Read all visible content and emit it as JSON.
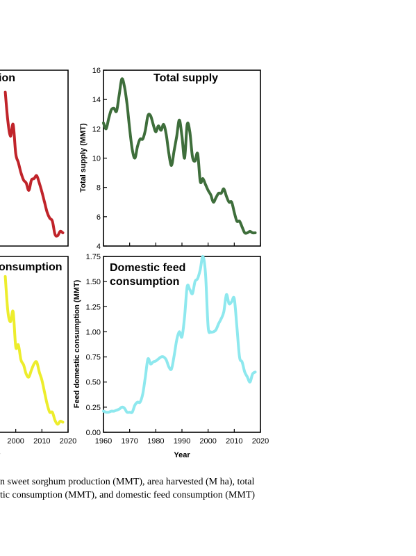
{
  "chart_data": [
    {
      "type": "line",
      "title": "ion",
      "xlabel": "",
      "ylabel": "",
      "color": "#c0242a",
      "x": [
        1996,
        1997,
        1998,
        1999,
        2000,
        2001,
        2002,
        2003,
        2004,
        2005,
        2006,
        2007,
        2008,
        2009,
        2010,
        2011,
        2012,
        2013,
        2014,
        2015,
        2016,
        2017,
        2018
      ],
      "values": [
        14.5,
        12.5,
        11.5,
        12.3,
        10.3,
        9.7,
        9.0,
        8.5,
        8.3,
        7.8,
        8.5,
        8.6,
        8.8,
        8.3,
        7.7,
        7.0,
        6.3,
        5.9,
        5.7,
        4.8,
        4.7,
        5.0,
        4.9
      ]
    },
    {
      "type": "line",
      "title": "Total supply",
      "xlabel": "",
      "ylabel": "Total supply (MMT)",
      "ylim": [
        4,
        16
      ],
      "yticks": [
        "4",
        "6",
        "8",
        "10",
        "12",
        "14",
        "16"
      ],
      "color": "#3e6e3b",
      "x": [
        1960,
        1961,
        1962,
        1963,
        1964,
        1965,
        1966,
        1967,
        1968,
        1969,
        1970,
        1971,
        1972,
        1973,
        1974,
        1975,
        1976,
        1977,
        1978,
        1979,
        1980,
        1981,
        1982,
        1983,
        1984,
        1985,
        1986,
        1987,
        1988,
        1989,
        1990,
        1991,
        1992,
        1993,
        1994,
        1995,
        1996,
        1997,
        1998,
        1999,
        2000,
        2001,
        2002,
        2003,
        2004,
        2005,
        2006,
        2007,
        2008,
        2009,
        2010,
        2011,
        2012,
        2013,
        2014,
        2015,
        2016,
        2017,
        2018
      ],
      "values": [
        12.4,
        12.0,
        12.7,
        13.3,
        13.4,
        13.2,
        14.3,
        15.4,
        14.9,
        13.7,
        12.0,
        10.6,
        10.0,
        10.8,
        11.3,
        11.3,
        11.9,
        12.9,
        12.9,
        12.3,
        11.8,
        12.2,
        11.9,
        12.3,
        11.6,
        10.3,
        9.5,
        10.5,
        11.5,
        12.6,
        11.5,
        10.0,
        12.3,
        11.8,
        10.1,
        9.8,
        10.3,
        8.4,
        8.6,
        8.2,
        7.8,
        7.5,
        7.0,
        7.3,
        7.6,
        7.6,
        7.9,
        7.4,
        7.0,
        7.0,
        6.3,
        5.7,
        5.7,
        5.3,
        4.9,
        4.9,
        5.0,
        4.9,
        4.9
      ]
    },
    {
      "type": "line",
      "title": "onsumption",
      "xlabel": "Year",
      "ylabel": "",
      "xticks": [
        "2000",
        "2010",
        "2020"
      ],
      "color": "#eded2c",
      "x": [
        1996,
        1997,
        1998,
        1999,
        2000,
        2001,
        2002,
        2003,
        2004,
        2005,
        2006,
        2007,
        2008,
        2009,
        2010,
        2011,
        2012,
        2013,
        2014,
        2015,
        2016,
        2017,
        2018
      ],
      "values": [
        1.55,
        1.2,
        1.1,
        1.2,
        0.85,
        0.87,
        0.72,
        0.67,
        0.58,
        0.55,
        0.62,
        0.68,
        0.7,
        0.6,
        0.52,
        0.4,
        0.28,
        0.2,
        0.2,
        0.12,
        0.08,
        0.11,
        0.1
      ]
    },
    {
      "type": "line",
      "title": "Domestic feed consumption",
      "title_lines": [
        "Domestic feed",
        "consumption"
      ],
      "xlabel": "Year",
      "ylabel": "Feed domestic consumption (MMT)",
      "xlim": [
        1960,
        2020
      ],
      "ylim": [
        0,
        1.75
      ],
      "xticks": [
        "1960",
        "1970",
        "1980",
        "1990",
        "2000",
        "2010",
        "2020"
      ],
      "yticks": [
        "0.00",
        "0.25",
        "0.50",
        "0.75",
        "1.00",
        "1.25",
        "1.50",
        "1.75"
      ],
      "color": "#8ee8ee",
      "x": [
        1960,
        1961,
        1962,
        1963,
        1964,
        1965,
        1966,
        1967,
        1968,
        1969,
        1970,
        1971,
        1972,
        1973,
        1974,
        1975,
        1976,
        1977,
        1978,
        1979,
        1980,
        1981,
        1982,
        1983,
        1984,
        1985,
        1986,
        1987,
        1988,
        1989,
        1990,
        1991,
        1992,
        1993,
        1994,
        1995,
        1996,
        1997,
        1998,
        1999,
        2000,
        2001,
        2002,
        2003,
        2004,
        2005,
        2006,
        2007,
        2008,
        2009,
        2010,
        2011,
        2012,
        2013,
        2014,
        2015,
        2016,
        2017,
        2018
      ],
      "values": [
        0.21,
        0.2,
        0.2,
        0.21,
        0.21,
        0.22,
        0.23,
        0.25,
        0.24,
        0.2,
        0.2,
        0.2,
        0.27,
        0.3,
        0.3,
        0.38,
        0.55,
        0.73,
        0.68,
        0.7,
        0.71,
        0.73,
        0.75,
        0.75,
        0.72,
        0.65,
        0.63,
        0.76,
        0.92,
        1.0,
        0.95,
        1.15,
        1.45,
        1.42,
        1.38,
        1.5,
        1.53,
        1.62,
        1.75,
        1.58,
        1.05,
        1.0,
        1.0,
        1.02,
        1.08,
        1.13,
        1.2,
        1.37,
        1.28,
        1.3,
        1.33,
        1.05,
        0.75,
        0.7,
        0.6,
        0.55,
        0.5,
        0.58,
        0.6
      ]
    }
  ],
  "caption": {
    "line1": "n sweet sorghum production (MMT), area harvested (M ha), total",
    "line2": "tic consumption (MMT), and domestic feed consumption (MMT)"
  }
}
